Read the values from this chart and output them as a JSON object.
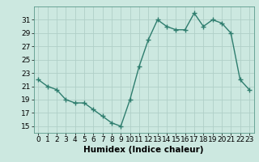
{
  "x": [
    0,
    1,
    2,
    3,
    4,
    5,
    6,
    7,
    8,
    9,
    10,
    11,
    12,
    13,
    14,
    15,
    16,
    17,
    18,
    19,
    20,
    21,
    22,
    23
  ],
  "y": [
    22,
    21,
    20.5,
    19,
    18.5,
    18.5,
    17.5,
    16.5,
    15.5,
    15,
    19,
    24,
    28,
    31,
    30,
    29.5,
    29.5,
    32,
    30,
    31,
    30.5,
    29,
    22,
    20.5
  ],
  "line_color": "#2e7d6e",
  "marker": "+",
  "marker_color": "#2e7d6e",
  "bg_color": "#cce8e0",
  "grid_color": "#b0cfc8",
  "xlabel": "Humidex (Indice chaleur)",
  "ylim": [
    14,
    33
  ],
  "xlim": [
    -0.5,
    23.5
  ],
  "yticks": [
    15,
    17,
    19,
    21,
    23,
    25,
    27,
    29,
    31
  ],
  "xticks": [
    0,
    1,
    2,
    3,
    4,
    5,
    6,
    7,
    8,
    9,
    10,
    11,
    12,
    13,
    14,
    15,
    16,
    17,
    18,
    19,
    20,
    21,
    22,
    23
  ],
  "xtick_labels": [
    "0",
    "1",
    "2",
    "3",
    "4",
    "5",
    "6",
    "7",
    "8",
    "9",
    "10",
    "11",
    "12",
    "13",
    "14",
    "15",
    "16",
    "17",
    "18",
    "19",
    "20",
    "21",
    "22",
    "23"
  ],
  "xlabel_fontsize": 7.5,
  "tick_fontsize": 6.5,
  "line_width": 1.0,
  "marker_size": 4
}
